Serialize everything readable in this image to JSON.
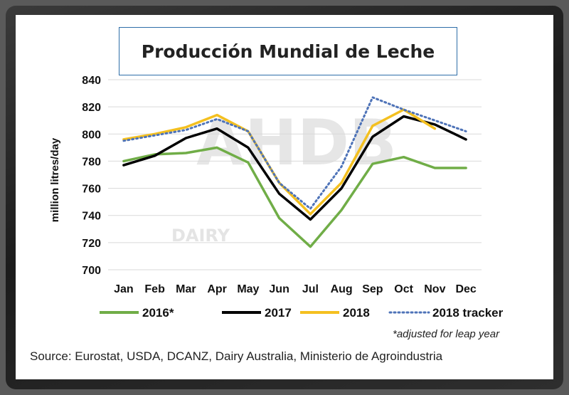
{
  "chart_data": {
    "type": "line",
    "title": "Producción Mundial de Leche",
    "ylabel": "million litres/day",
    "xlabel": "",
    "ylim": [
      700,
      840
    ],
    "yticks": [
      700,
      720,
      740,
      760,
      780,
      800,
      820,
      840
    ],
    "grid": true,
    "legend_position": "bottom",
    "categories": [
      "Jan",
      "Feb",
      "Mar",
      "Apr",
      "May",
      "Jun",
      "Jul",
      "Aug",
      "Sep",
      "Oct",
      "Nov",
      "Dec"
    ],
    "series": [
      {
        "name": "2016*",
        "color": "#70ad47",
        "style": "solid",
        "values": [
          780,
          785,
          786,
          790,
          779,
          738,
          717,
          744,
          778,
          783,
          775,
          775
        ]
      },
      {
        "name": "2017",
        "color": "#000000",
        "style": "solid",
        "values": [
          777,
          784,
          797,
          804,
          790,
          756,
          737,
          760,
          798,
          813,
          807,
          796
        ]
      },
      {
        "name": "2018",
        "color": "#f4c020",
        "style": "solid",
        "values": [
          796,
          800,
          805,
          814,
          802,
          764,
          741,
          764,
          806,
          818,
          804,
          null
        ]
      },
      {
        "name": "2018 tracker",
        "color": "#4e73b8",
        "style": "dotted",
        "values": [
          795,
          799,
          803,
          811,
          802,
          764,
          745,
          776,
          827,
          818,
          810,
          802
        ]
      }
    ],
    "footnote": "*adjusted for leap year",
    "source": "Source:  Eurostat, USDA, DCANZ,  Dairy Australia, Ministerio de Agroindustria",
    "watermark": {
      "main": "AHDB",
      "sub": "DAIRY"
    }
  }
}
